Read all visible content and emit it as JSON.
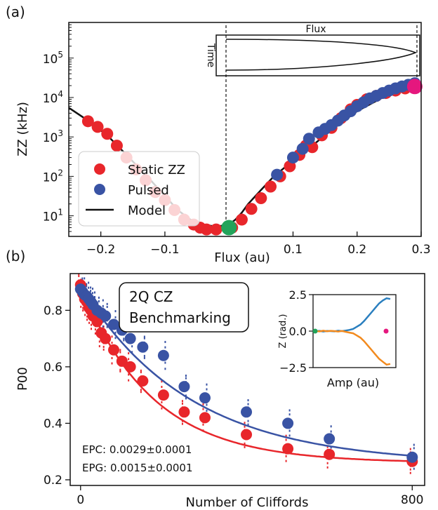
{
  "chart_data": [
    {
      "panel_label": "(a)",
      "type": "scatter",
      "xlabel": "Flux (au)",
      "ylabel": "ZZ (kHz)",
      "xlim": [
        -0.25,
        0.3
      ],
      "ylim": [
        3,
        800000
      ],
      "y_scale": "log",
      "x_ticks": [
        -0.2,
        -0.1,
        0.1,
        0.2,
        0.3
      ],
      "x_tick_labels": [
        "−0.2",
        "−0.1",
        "0.1",
        "0.2",
        "0.3"
      ],
      "y_tick_exponents": [
        1,
        2,
        3,
        4,
        5
      ],
      "y_tick_base": "10",
      "legend": {
        "position": "lower-left",
        "entries": [
          {
            "label": "Static ZZ",
            "color": "#e8262b"
          },
          {
            "label": "Pulsed",
            "color": "#3953a4"
          },
          {
            "label": "Model",
            "color": "#111111"
          }
        ]
      },
      "series": [
        {
          "name": "Static ZZ",
          "color": "#e8262b",
          "points": [
            [
              -0.22,
              2500
            ],
            [
              -0.205,
              1800
            ],
            [
              -0.19,
              1200
            ],
            [
              -0.175,
              600
            ],
            [
              -0.16,
              300
            ],
            [
              -0.145,
              150
            ],
            [
              -0.13,
              80
            ],
            [
              -0.115,
              40
            ],
            [
              -0.1,
              25
            ],
            [
              -0.085,
              14
            ],
            [
              -0.07,
              8
            ],
            [
              -0.055,
              6
            ],
            [
              -0.045,
              5
            ],
            [
              -0.035,
              4.5
            ],
            [
              -0.02,
              4.5
            ],
            [
              0.005,
              5
            ],
            [
              0.02,
              8
            ],
            [
              0.035,
              15
            ],
            [
              0.05,
              28
            ],
            [
              0.065,
              55
            ],
            [
              0.08,
              100
            ],
            [
              0.095,
              180
            ],
            [
              0.11,
              350
            ],
            [
              0.12,
              600
            ],
            [
              0.13,
              550
            ],
            [
              0.145,
              1100
            ],
            [
              0.16,
              1700
            ],
            [
              0.175,
              3000
            ],
            [
              0.19,
              5000
            ],
            [
              0.2,
              6500
            ],
            [
              0.215,
              9000
            ],
            [
              0.23,
              11000
            ],
            [
              0.245,
              13000
            ],
            [
              0.26,
              15000
            ],
            [
              0.275,
              17000
            ]
          ]
        },
        {
          "name": "Pulsed",
          "color": "#3953a4",
          "points": [
            [
              0.075,
              110
            ],
            [
              0.1,
              300
            ],
            [
              0.115,
              500
            ],
            [
              0.125,
              900
            ],
            [
              0.14,
              1300
            ],
            [
              0.15,
              1600
            ],
            [
              0.16,
              2000
            ],
            [
              0.17,
              2600
            ],
            [
              0.18,
              3500
            ],
            [
              0.19,
              4500
            ],
            [
              0.2,
              6000
            ],
            [
              0.21,
              7500
            ],
            [
              0.22,
              9500
            ],
            [
              0.23,
              11000
            ],
            [
              0.24,
              13000
            ],
            [
              0.25,
              15000
            ],
            [
              0.26,
              17000
            ],
            [
              0.27,
              19000
            ],
            [
              0.28,
              21000
            ],
            [
              0.29,
              23000
            ]
          ]
        },
        {
          "name": "Model",
          "color": "#111111",
          "type": "line",
          "points": [
            [
              -0.25,
              5500
            ],
            [
              -0.22,
              2600
            ],
            [
              -0.19,
              1100
            ],
            [
              -0.16,
              350
            ],
            [
              -0.13,
              110
            ],
            [
              -0.1,
              32
            ],
            [
              -0.08,
              14
            ],
            [
              -0.06,
              8
            ],
            [
              -0.04,
              6
            ],
            [
              -0.02,
              5.3
            ],
            [
              0.0,
              6
            ],
            [
              0.01,
              8
            ],
            [
              0.02,
              12
            ],
            [
              0.03,
              20
            ],
            [
              0.05,
              45
            ],
            [
              0.07,
              100
            ],
            [
              0.1,
              250
            ],
            [
              0.13,
              600
            ],
            [
              0.16,
              1500
            ],
            [
              0.2,
              4500
            ],
            [
              0.24,
              10000
            ],
            [
              0.27,
              15000
            ],
            [
              0.3,
              20000
            ]
          ]
        }
      ],
      "highlights": [
        {
          "x": 0.0,
          "y": 5,
          "color": "#22a35a"
        },
        {
          "x": 0.29,
          "y": 19000,
          "color": "#e5177e"
        }
      ],
      "inset": {
        "title": "Flux",
        "ylabel": "Time"
      }
    },
    {
      "panel_label": "(b)",
      "type": "scatter",
      "xlabel": "Number of Cliffords",
      "ylabel": "P00",
      "xlim": [
        -25,
        830
      ],
      "ylim": [
        0.18,
        0.93
      ],
      "x_ticks": [
        0,
        800
      ],
      "x_tick_labels": [
        "0",
        "800"
      ],
      "y_ticks": [
        0.2,
        0.4,
        0.6,
        0.8
      ],
      "y_tick_labels": [
        "0.2",
        "0.4",
        "0.6",
        "0.8"
      ],
      "annotation_box": "2Q CZ\nBenchmarking",
      "annotation_lines": [
        "2Q CZ",
        "Benchmarking"
      ],
      "epc_text": "EPC: 0.0029±0.0001",
      "epg_text": "EPG: 0.0015±0.0001",
      "series": [
        {
          "name": "Static ZZ",
          "color": "#e8262b",
          "x": [
            0,
            5,
            10,
            15,
            20,
            25,
            30,
            40,
            50,
            60,
            80,
            100,
            120,
            150,
            200,
            250,
            300,
            400,
            500,
            600,
            800
          ],
          "y": [
            0.89,
            0.86,
            0.84,
            0.83,
            0.81,
            0.8,
            0.78,
            0.76,
            0.72,
            0.7,
            0.66,
            0.62,
            0.6,
            0.55,
            0.5,
            0.44,
            0.42,
            0.36,
            0.31,
            0.29,
            0.265
          ]
        },
        {
          "name": "Pulsed",
          "color": "#3953a4",
          "x": [
            0,
            5,
            10,
            15,
            20,
            25,
            30,
            40,
            50,
            60,
            80,
            100,
            120,
            150,
            200,
            250,
            300,
            400,
            500,
            600,
            800
          ],
          "y": [
            0.875,
            0.865,
            0.855,
            0.85,
            0.84,
            0.83,
            0.82,
            0.8,
            0.79,
            0.78,
            0.75,
            0.73,
            0.7,
            0.67,
            0.64,
            0.53,
            0.49,
            0.44,
            0.4,
            0.345,
            0.28
          ]
        }
      ],
      "fits": [
        {
          "color": "#e8262b",
          "A": 0.63,
          "p": 0.9942,
          "B": 0.26
        },
        {
          "color": "#3953a4",
          "A": 0.63,
          "p": 0.9962,
          "B": 0.255
        }
      ],
      "inset": {
        "xlabel": "Amp (au)",
        "ylabel": "Z (rad.)",
        "ylim": [
          -2.5,
          2.5
        ],
        "y_ticks": [
          2.5,
          0.0,
          -2.5
        ],
        "y_tick_labels": [
          "2.5",
          "0.0",
          "−2.5"
        ],
        "series": [
          {
            "name": "",
            "color": "#2a7fbf",
            "y": [
              0.0,
              0.02,
              -0.03,
              0.01,
              0.0,
              -0.02,
              0.03,
              0.0,
              0.04,
              0.08,
              0.15,
              0.3,
              0.45,
              0.7,
              1.0,
              1.3,
              1.6,
              1.9,
              2.1,
              2.25,
              2.2
            ]
          },
          {
            "name": "",
            "color": "#f28a1e",
            "y": [
              0.0,
              -0.02,
              0.03,
              -0.01,
              0.02,
              0.0,
              -0.03,
              0.01,
              -0.05,
              -0.1,
              -0.15,
              -0.3,
              -0.45,
              -0.7,
              -1.0,
              -1.3,
              -1.6,
              -1.9,
              -2.1,
              -2.3,
              -2.25
            ]
          }
        ],
        "markers": [
          {
            "position": "start",
            "y": 0.0,
            "color": "#22a35a"
          },
          {
            "position": "end",
            "y": 0.0,
            "color": "#e5177e"
          }
        ]
      }
    }
  ]
}
